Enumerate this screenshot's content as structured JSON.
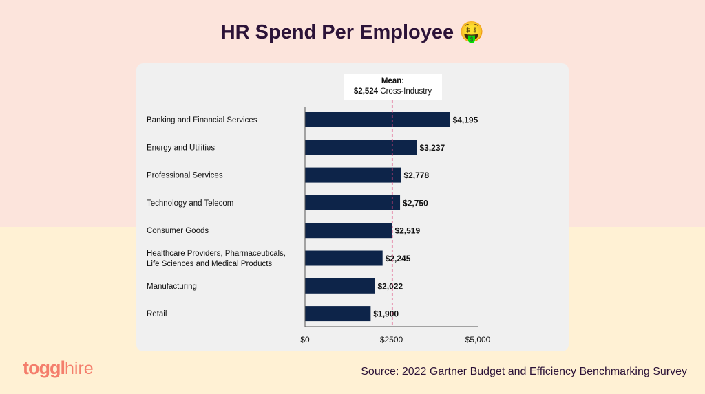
{
  "title": "HR Spend Per Employee",
  "title_emoji": "🤑",
  "mean": {
    "label": "Mean:",
    "value": "$2,524",
    "suffix": "Cross-Industry"
  },
  "source": "Source: 2022 Gartner Budget and Efficiency Benchmarking Survey",
  "logo": {
    "bold": "toggl",
    "light": "hire"
  },
  "chart_data": {
    "type": "bar",
    "orientation": "horizontal",
    "categories": [
      "Banking and Financial Services",
      "Energy and Utilities",
      "Professional Services",
      "Technology and Telecom",
      "Consumer Goods",
      "Healthcare Providers, Pharmaceuticals, Life Sciences and Medical Products",
      "Manufacturing",
      "Retail"
    ],
    "category_lines": [
      [
        "Banking and Financial Services"
      ],
      [
        "Energy and Utilities"
      ],
      [
        "Professional Services"
      ],
      [
        "Technology and Telecom"
      ],
      [
        "Consumer Goods"
      ],
      [
        "Healthcare Providers, Pharmaceuticals,",
        "Life Sciences and Medical Products"
      ],
      [
        "Manufacturing"
      ],
      [
        "Retail"
      ]
    ],
    "values": [
      4195,
      3237,
      2778,
      2750,
      2519,
      2245,
      2022,
      1900
    ],
    "data_labels": [
      "$4,195",
      "$3,237",
      "$2,778",
      "$2,750",
      "$2,519",
      "$2,245",
      "$2,022",
      "$1,900"
    ],
    "xlim": [
      0,
      5000
    ],
    "xticks": [
      0,
      2500,
      5000
    ],
    "xtick_labels": [
      "$0",
      "$2500",
      "$5,000"
    ],
    "reference_line": 2524,
    "bar_color": "#0d2449",
    "reference_color": "#e0457b",
    "grid": false
  }
}
